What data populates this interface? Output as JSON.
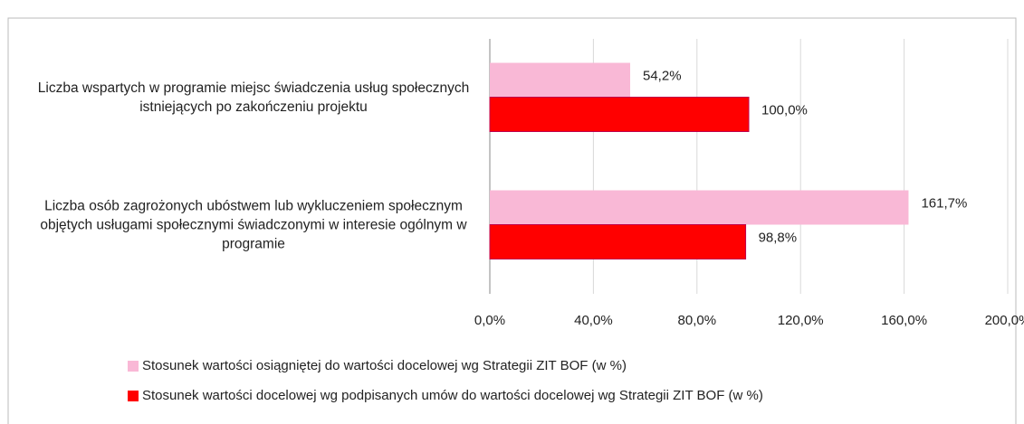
{
  "chart_data": {
    "type": "hbar",
    "categories": [
      "Liczba wspartych w programie miejsc świadczenia usług społecznych istniejących po zakończeniu projektu",
      "Liczba osób zagrożonych ubóstwem lub wykluczeniem społecznym objętych usługami społecznymi świadczonymi w interesie ogólnym w programie"
    ],
    "series": [
      {
        "name": "Stosunek wartości osiągniętej do wartości docelowej wg Strategii ZIT BOF (w %)",
        "color": "#f9b8d6",
        "values": [
          54.2,
          161.7
        ],
        "value_labels": [
          "54,2%",
          "161,7%"
        ]
      },
      {
        "name": "Stosunek wartości docelowej wg podpisanych umów do wartości docelowej wg Strategii ZIT BOF (w %)",
        "color": "#ff0000",
        "values": [
          100.0,
          98.8
        ],
        "value_labels": [
          "100,0%",
          "98,8%"
        ]
      }
    ],
    "xlim": [
      0,
      200
    ],
    "xticks": [
      {
        "value": 0,
        "label": "0,0%"
      },
      {
        "value": 40,
        "label": "40,0%"
      },
      {
        "value": 80,
        "label": "80,0%"
      },
      {
        "value": 120,
        "label": "120,0%"
      },
      {
        "value": 160,
        "label": "160,0%"
      },
      {
        "value": 200,
        "label": "200,0%"
      }
    ],
    "grid": true
  }
}
